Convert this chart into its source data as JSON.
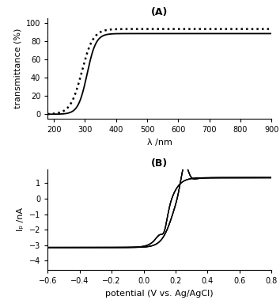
{
  "panel_A_label": "(A)",
  "panel_B_label": "(B)",
  "transmittance_xlabel": "λ /nm",
  "transmittance_ylabel": "transmittance (%)",
  "transmittance_xlim": [
    180,
    900
  ],
  "transmittance_ylim": [
    -5,
    105
  ],
  "transmittance_xticks": [
    200,
    300,
    400,
    500,
    600,
    700,
    800,
    900
  ],
  "transmittance_yticks": [
    0,
    20,
    40,
    60,
    80,
    100
  ],
  "cv_xlabel": "potential (V vs. Ag/AgCl)",
  "cv_ylabel": "Iₚ /nA",
  "cv_xlim": [
    -0.6,
    0.8
  ],
  "cv_ylim": [
    -4.6,
    1.9
  ],
  "cv_xticks": [
    -0.6,
    -0.4,
    -0.2,
    0.0,
    0.2,
    0.4,
    0.6,
    0.8
  ],
  "cv_yticks": [
    -4,
    -3,
    -2,
    -1,
    0,
    1
  ],
  "line_color": "#000000",
  "background_color": "#ffffff"
}
